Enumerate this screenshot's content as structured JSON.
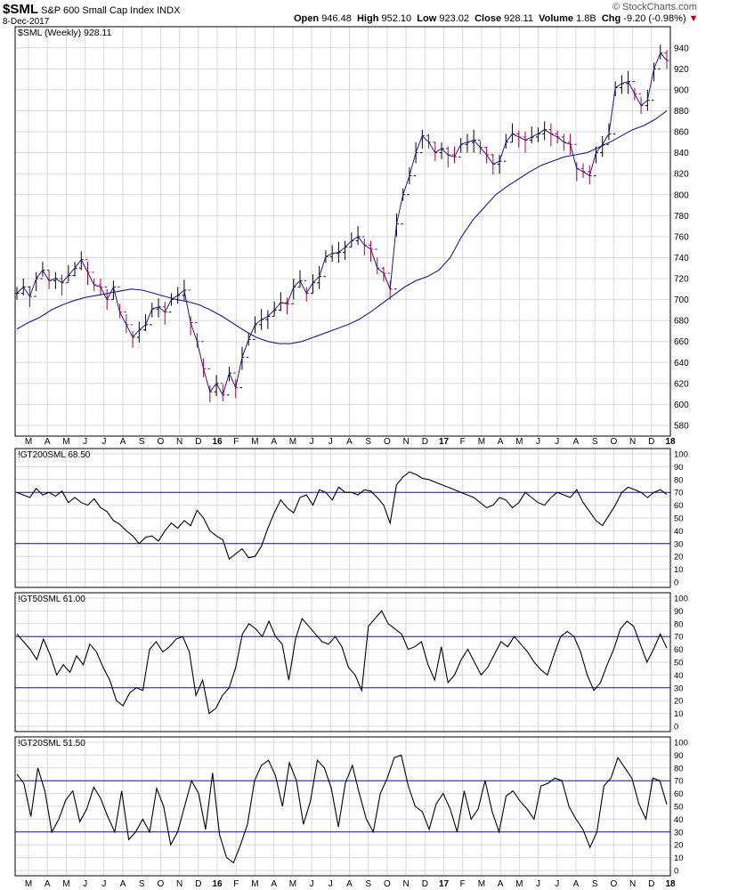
{
  "header": {
    "symbol": "$SML",
    "name": "S&P 600 Small Cap Index",
    "exchange": "INDX",
    "date": "8-Dec-2017",
    "open_label": "Open",
    "open": "946.48",
    "high_label": "High",
    "high": "952.10",
    "low_label": "Low",
    "low": "923.02",
    "close_label": "Close",
    "close": "928.11",
    "volume_label": "Volume",
    "volume": "1.8B",
    "chg_label": "Chg",
    "chg": "-9.20 (-0.98%)",
    "logo": "© StockCharts.com"
  },
  "colors": {
    "line": "#000000",
    "ma": "#1a1a8c",
    "grid": "#d9d9d9",
    "border": "#000000",
    "bar_up": "#000000",
    "bar_down": "#b0003a",
    "hline": "#1a1a8c"
  },
  "x_axis": {
    "labels": [
      "M",
      "A",
      "M",
      "J",
      "J",
      "A",
      "S",
      "O",
      "N",
      "D",
      "16",
      "F",
      "M",
      "A",
      "M",
      "J",
      "J",
      "A",
      "S",
      "O",
      "N",
      "D",
      "17",
      "F",
      "M",
      "A",
      "M",
      "J",
      "J",
      "A",
      "S",
      "O",
      "N",
      "D",
      "18"
    ],
    "bold": [
      "16",
      "17",
      "18"
    ]
  },
  "chart_data": [
    {
      "type": "line",
      "title": "$SML (Weekly) 928.11",
      "frequency": "Weekly",
      "x_range": [
        "2015-03",
        "2017-12"
      ],
      "ylim": [
        580,
        950
      ],
      "yticks": [
        580,
        600,
        620,
        640,
        660,
        680,
        700,
        720,
        740,
        760,
        780,
        800,
        820,
        840,
        860,
        880,
        900,
        920,
        940
      ],
      "grid": true,
      "series": [
        {
          "name": "$SML",
          "style": "weekly OHLC bars with close line",
          "values": [
            706,
            712,
            703,
            720,
            728,
            718,
            720,
            716,
            723,
            730,
            738,
            726,
            714,
            712,
            700,
            712,
            688,
            676,
            664,
            671,
            676,
            691,
            693,
            688,
            700,
            704,
            709,
            678,
            660,
            634,
            612,
            620,
            609,
            630,
            616,
            645,
            662,
            676,
            681,
            684,
            690,
            697,
            696,
            712,
            718,
            706,
            716,
            722,
            741,
            744,
            745,
            750,
            756,
            760,
            752,
            748,
            730,
            725,
            710,
            772,
            800,
            818,
            840,
            856,
            850,
            840,
            844,
            838,
            836,
            848,
            850,
            852,
            845,
            838,
            829,
            832,
            850,
            858,
            855,
            852,
            855,
            858,
            862,
            858,
            855,
            850,
            848,
            825,
            822,
            818,
            840,
            848,
            858,
            902,
            906,
            908,
            896,
            885,
            890,
            920,
            935,
            928
          ]
        },
        {
          "name": "40-week moving average",
          "values": [
            672,
            678,
            683,
            690,
            695,
            699,
            702,
            704,
            706,
            708,
            710,
            709,
            706,
            703,
            700,
            698,
            695,
            690,
            684,
            677,
            670,
            664,
            660,
            658,
            658,
            660,
            664,
            668,
            672,
            676,
            681,
            688,
            696,
            704,
            712,
            718,
            722,
            728,
            740,
            760,
            776,
            788,
            800,
            808,
            815,
            822,
            828,
            832,
            836,
            838,
            840,
            845,
            850,
            856,
            862,
            866,
            872,
            880
          ]
        }
      ]
    },
    {
      "type": "line",
      "title": "!GT200SML 68.50",
      "ylim": [
        0,
        100
      ],
      "yticks": [
        0,
        10,
        20,
        30,
        40,
        50,
        60,
        70,
        80,
        90,
        100
      ],
      "hlines": [
        30,
        70
      ],
      "grid": true,
      "series": [
        {
          "name": "!GT200SML",
          "values": [
            70,
            68,
            66,
            73,
            68,
            70,
            67,
            71,
            62,
            66,
            62,
            60,
            65,
            58,
            55,
            48,
            45,
            40,
            36,
            30,
            35,
            36,
            32,
            40,
            46,
            42,
            48,
            44,
            56,
            50,
            40,
            36,
            33,
            18,
            22,
            26,
            19,
            20,
            28,
            42,
            54,
            64,
            58,
            54,
            66,
            68,
            60,
            72,
            70,
            64,
            74,
            70,
            70,
            68,
            72,
            71,
            66,
            60,
            46,
            76,
            82,
            86,
            84,
            81,
            80,
            78,
            76,
            74,
            72,
            70,
            68,
            66,
            62,
            58,
            60,
            66,
            64,
            58,
            62,
            70,
            66,
            62,
            60,
            66,
            70,
            68,
            66,
            72,
            62,
            55,
            48,
            44,
            52,
            60,
            70,
            74,
            72,
            70,
            66,
            70,
            72,
            68.5
          ]
        }
      ]
    },
    {
      "type": "line",
      "title": "!GT50SML 61.00",
      "ylim": [
        0,
        100
      ],
      "yticks": [
        0,
        10,
        20,
        30,
        40,
        50,
        60,
        70,
        80,
        90,
        100
      ],
      "hlines": [
        30,
        70
      ],
      "grid": true,
      "series": [
        {
          "name": "!GT50SML",
          "values": [
            72,
            66,
            60,
            52,
            68,
            56,
            40,
            48,
            42,
            55,
            48,
            64,
            58,
            46,
            36,
            20,
            16,
            26,
            30,
            28,
            60,
            66,
            58,
            62,
            68,
            70,
            58,
            24,
            36,
            10,
            14,
            24,
            30,
            46,
            72,
            80,
            76,
            70,
            82,
            70,
            64,
            36,
            68,
            84,
            78,
            72,
            66,
            64,
            70,
            62,
            46,
            40,
            28,
            78,
            84,
            90,
            80,
            76,
            72,
            60,
            62,
            66,
            48,
            36,
            62,
            34,
            40,
            52,
            60,
            50,
            40,
            46,
            56,
            66,
            62,
            70,
            64,
            58,
            50,
            44,
            40,
            56,
            70,
            74,
            70,
            58,
            40,
            28,
            34,
            48,
            60,
            76,
            82,
            78,
            64,
            50,
            60,
            72,
            61
          ]
        }
      ]
    },
    {
      "type": "line",
      "title": "!GT20SML 51.50",
      "ylim": [
        0,
        100
      ],
      "yticks": [
        0,
        10,
        20,
        30,
        40,
        50,
        60,
        70,
        80,
        90,
        100
      ],
      "hlines": [
        30,
        70
      ],
      "grid": true,
      "series": [
        {
          "name": "!GT20SML",
          "values": [
            75,
            68,
            42,
            80,
            62,
            30,
            40,
            55,
            62,
            38,
            48,
            65,
            56,
            42,
            30,
            62,
            24,
            30,
            40,
            30,
            64,
            50,
            20,
            30,
            50,
            70,
            60,
            32,
            76,
            28,
            10,
            6,
            20,
            36,
            70,
            82,
            86,
            74,
            50,
            84,
            70,
            36,
            54,
            86,
            80,
            64,
            34,
            68,
            82,
            60,
            40,
            30,
            60,
            72,
            88,
            90,
            66,
            50,
            46,
            32,
            52,
            60,
            48,
            30,
            62,
            40,
            48,
            70,
            46,
            30,
            58,
            62,
            54,
            48,
            40,
            66,
            68,
            72,
            70,
            50,
            40,
            32,
            18,
            30,
            66,
            72,
            88,
            80,
            72,
            52,
            40,
            72,
            70,
            51.5
          ]
        }
      ]
    }
  ]
}
